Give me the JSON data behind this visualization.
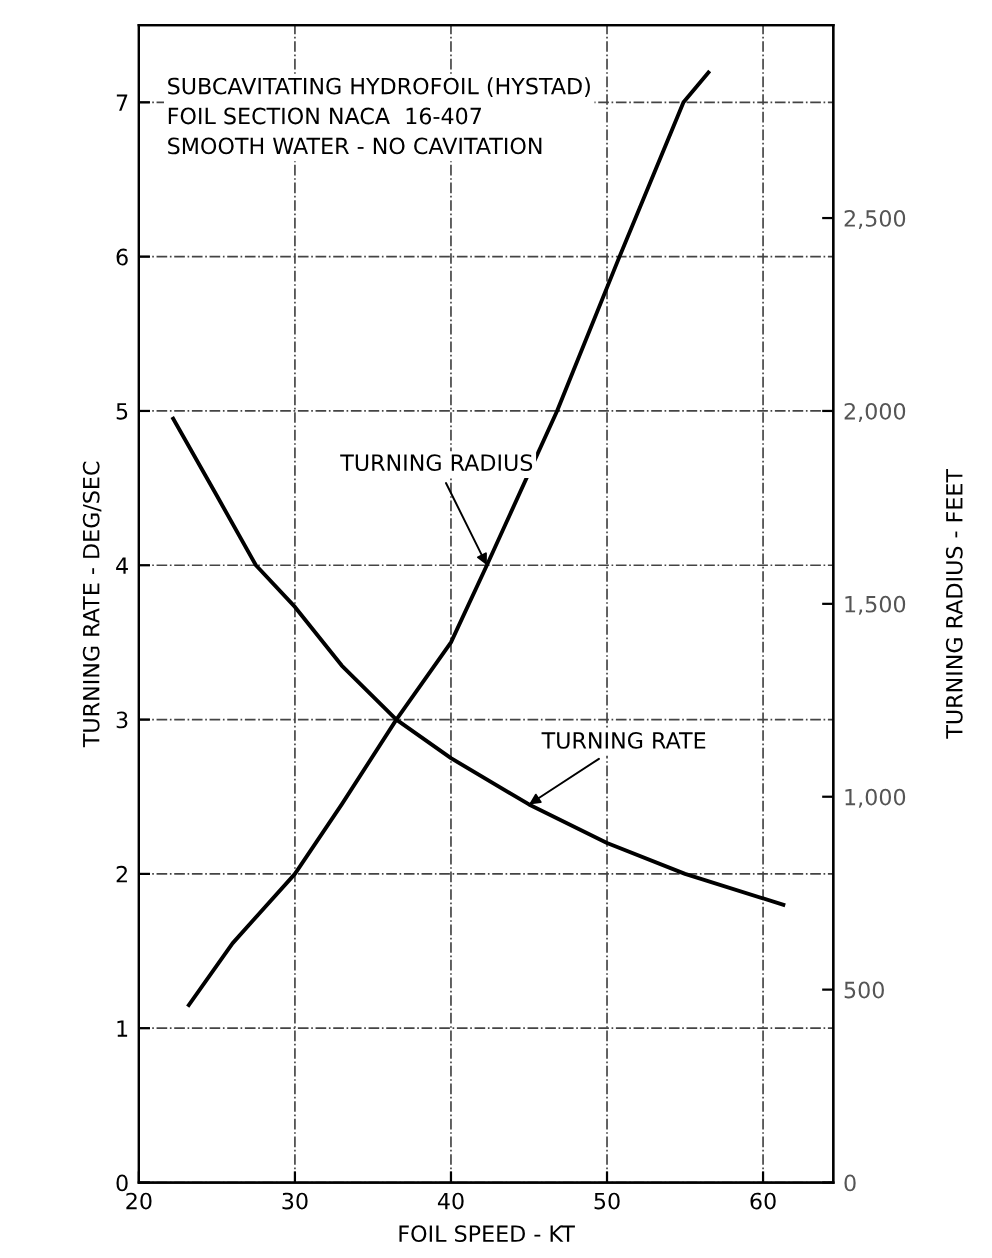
{
  "chart_data": {
    "type": "line",
    "xlabel": "FOIL SPEED - KT",
    "ylabel": "TURNING RATE - DEG/SEC",
    "y2label": "TURNING RADIUS - FEET",
    "annotations": [
      "SUBCAVITATING HYDROFOIL (HYSTAD)",
      "FOIL SECTION NACA  16-407",
      "SMOOTH WATER - NO CAVITATION"
    ],
    "xlim": [
      20,
      64.5
    ],
    "xticks": [
      20,
      30,
      40,
      50,
      60
    ],
    "ylim": [
      0,
      7.5
    ],
    "yticks": [
      0,
      1,
      2,
      3,
      4,
      5,
      6,
      7
    ],
    "y2lim": [
      0,
      3000
    ],
    "y2ticks": [
      0,
      500,
      {
        "value": 1000,
        "label": "1,000"
      },
      {
        "value": 1500,
        "label": "1,500"
      },
      {
        "value": 2000,
        "label": "2,000"
      },
      {
        "value": 2500,
        "label": "2,500"
      }
    ],
    "grid": true,
    "marker": "none",
    "line_style": "solid",
    "legend": false,
    "series": [
      {
        "name": "TURNING RATE",
        "color": "#000000",
        "x": [
          22.2,
          25,
          27.5,
          30,
          33,
          36.5,
          40,
          45,
          50,
          55,
          61.3
        ],
        "values": [
          4.95,
          4.45,
          4.0,
          3.73,
          3.35,
          3.0,
          2.75,
          2.45,
          2.2,
          2.0,
          1.8
        ]
      },
      {
        "name": "TURNING RADIUS",
        "color": "#000000",
        "axis": "y2",
        "x": [
          23.2,
          26,
          30,
          33,
          36.5,
          40,
          42.3,
          46.8,
          50.8,
          54.9,
          56.5
        ],
        "values": [
          460,
          620,
          800,
          980,
          1200,
          1400,
          1600,
          2000,
          2400,
          2800,
          2877
        ]
      }
    ]
  }
}
